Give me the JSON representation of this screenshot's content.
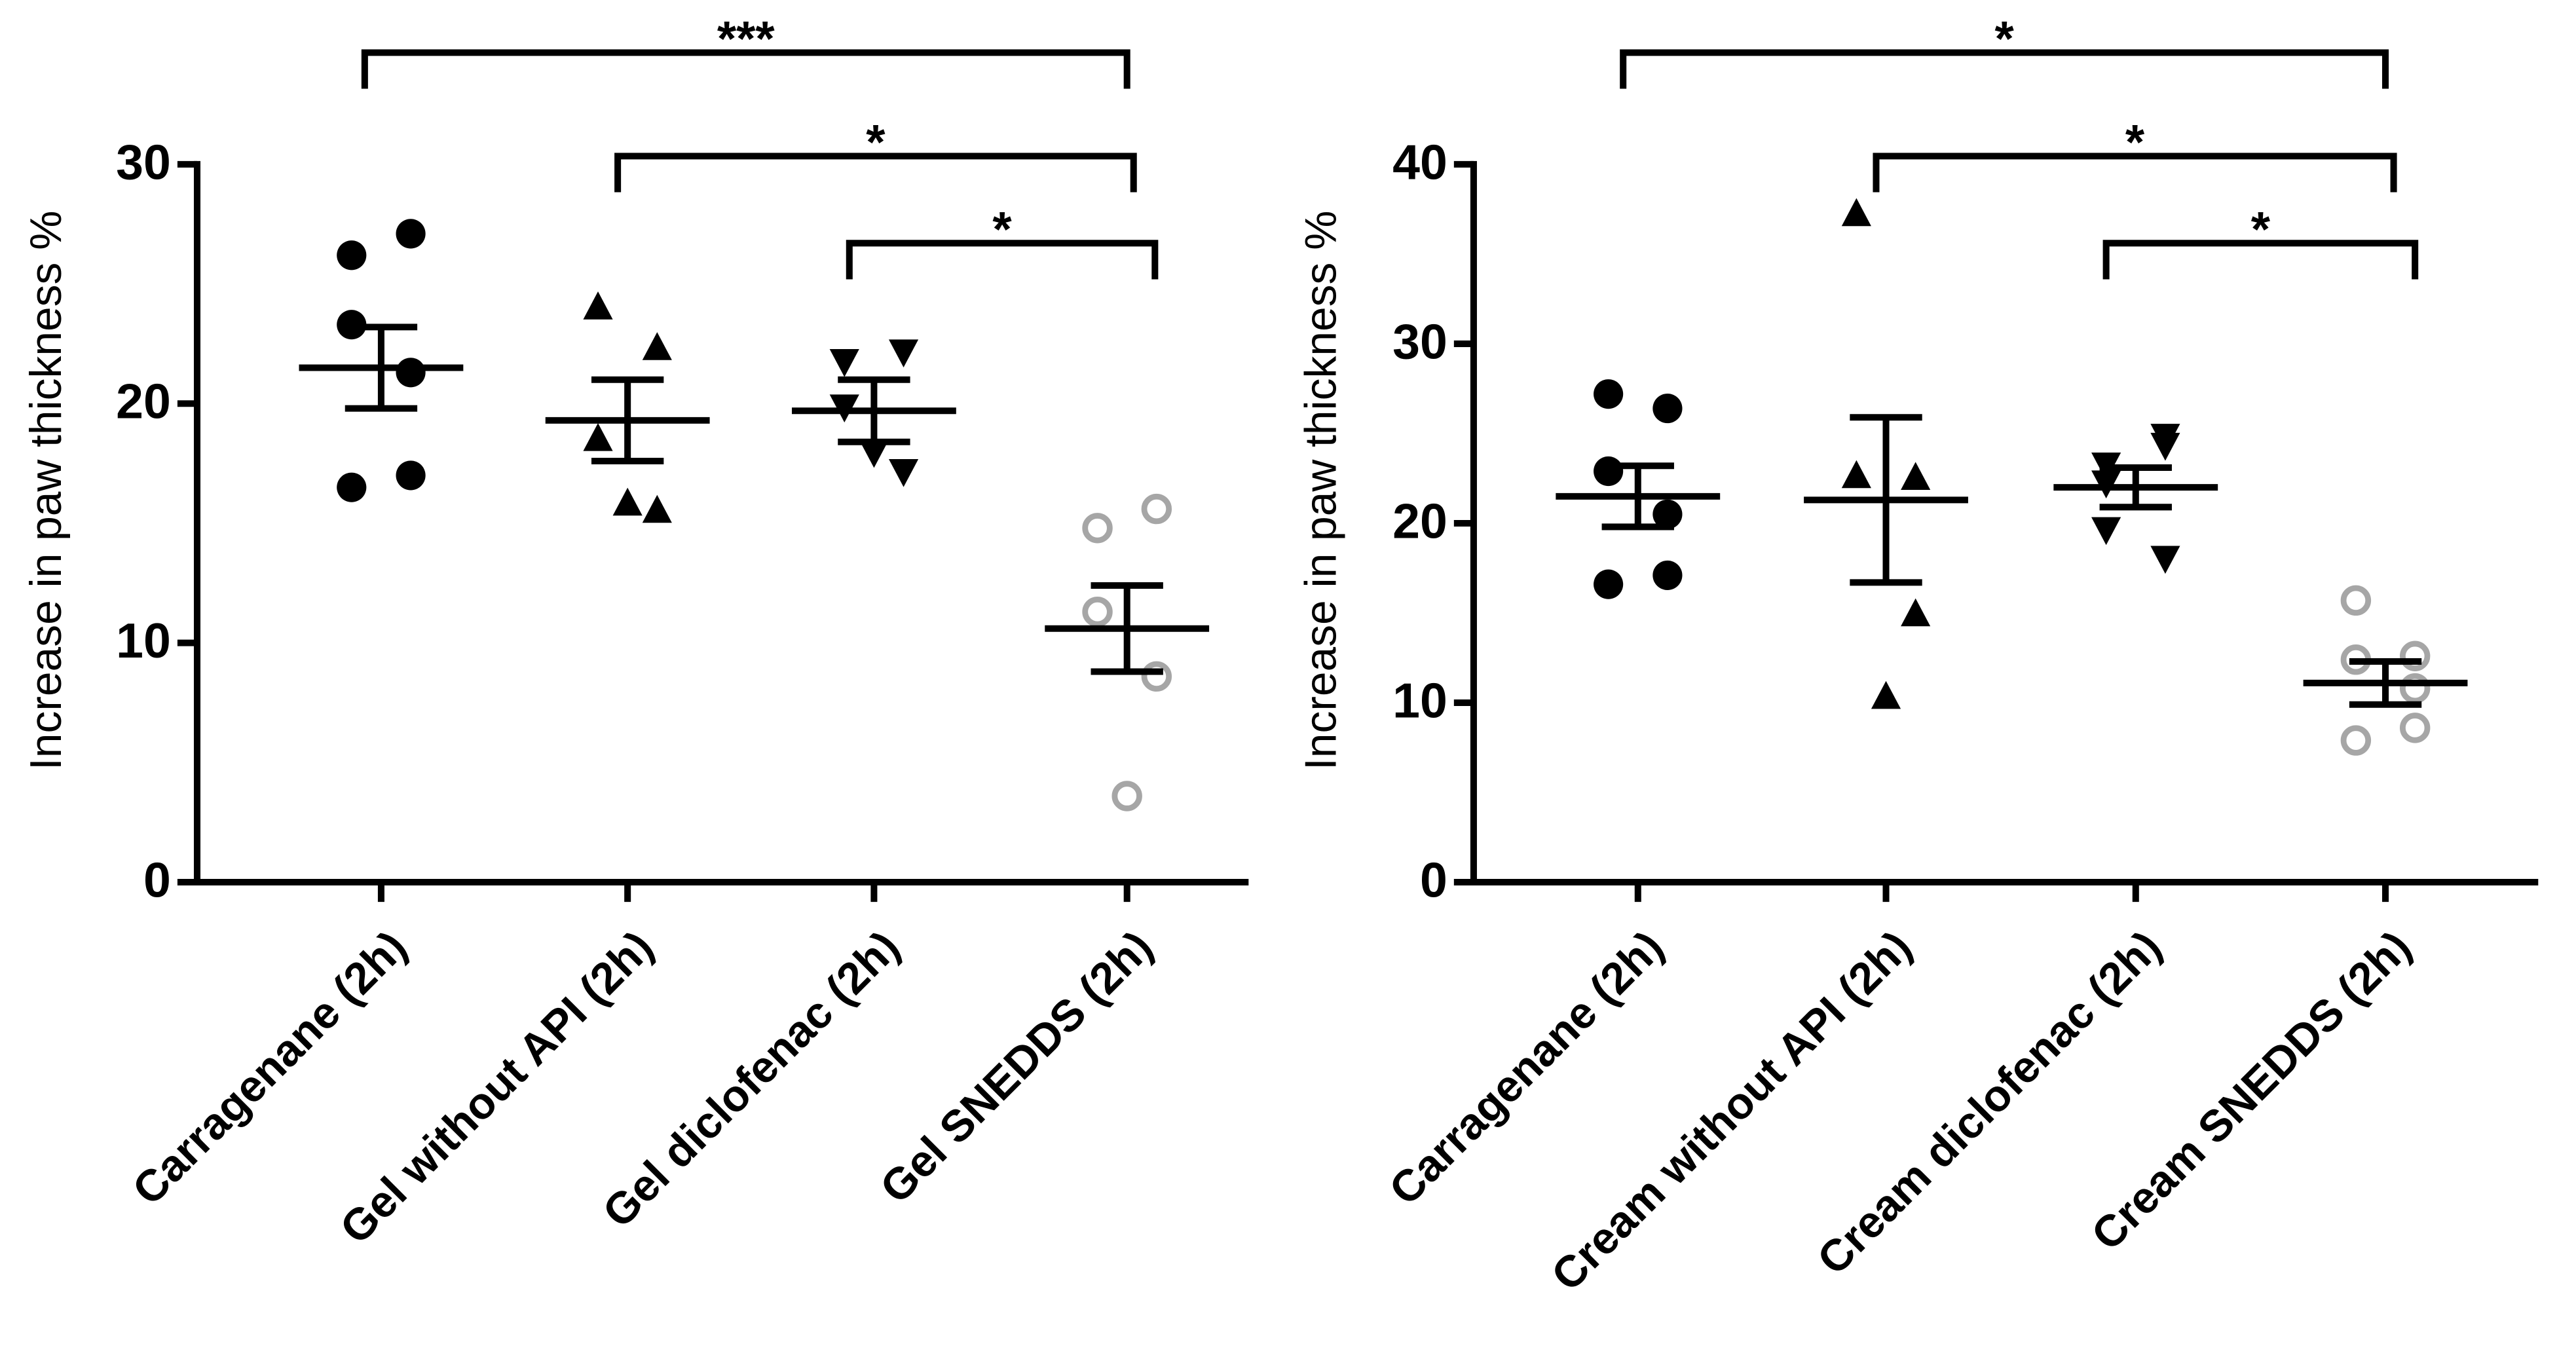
{
  "chart_data": [
    {
      "type": "scatter",
      "ylabel": "Increase in paw thickness %",
      "categories": [
        "Carragenane (2h)",
        "Gel without API (2h)",
        "Gel diclofenac (2h)",
        "Gel SNEDDS (2h)"
      ],
      "points": [
        [
          26.2,
          27.1,
          23.3,
          21.3,
          16.5,
          17.0
        ],
        [
          24.0,
          22.3,
          18.5,
          15.5,
          15.8
        ],
        [
          21.8,
          22.2,
          19.9,
          17.2,
          18.0
        ],
        [
          14.8,
          15.6,
          11.3,
          8.6,
          3.6
        ]
      ],
      "means": [
        21.5,
        19.3,
        19.7,
        10.6
      ],
      "errors": [
        1.7,
        1.7,
        1.3,
        1.8
      ],
      "markers": [
        "circle",
        "triangle",
        "triangle-down",
        "open-circle"
      ],
      "colors": [
        "#000000",
        "#000000",
        "#000000",
        "#a6a6a6"
      ],
      "ylim": [
        0,
        30
      ],
      "yticks": [
        0,
        10,
        20,
        30
      ],
      "comparisons": [
        {
          "from": 0,
          "to": 3,
          "label": "***"
        },
        {
          "from": 1,
          "to": 3,
          "label": "*"
        },
        {
          "from": 2,
          "to": 3,
          "label": "*"
        }
      ]
    },
    {
      "type": "scatter",
      "ylabel": "Increase in paw thickness %",
      "categories": [
        "Carragenane (2h)",
        "Cream without API (2h)",
        "Cream diclofenac (2h)",
        "Cream SNEDDS (2h)"
      ],
      "points": [
        [
          27.2,
          26.4,
          22.9,
          20.5,
          16.6,
          17.1
        ],
        [
          37.2,
          22.5,
          22.6,
          14.9,
          10.3
        ],
        [
          22.3,
          24.9,
          23.3,
          24.4,
          19.7,
          18.1
        ],
        [
          15.7,
          12.6,
          12.4,
          10.8,
          7.9,
          8.6
        ]
      ],
      "means": [
        21.5,
        21.3,
        22.0,
        11.1
      ],
      "errors": [
        1.7,
        4.6,
        1.1,
        1.2
      ],
      "markers": [
        "circle",
        "triangle",
        "triangle-down",
        "open-circle"
      ],
      "colors": [
        "#000000",
        "#000000",
        "#000000",
        "#a6a6a6"
      ],
      "ylim": [
        0,
        40
      ],
      "yticks": [
        0,
        10,
        20,
        30,
        40
      ],
      "comparisons": [
        {
          "from": 0,
          "to": 3,
          "label": "*"
        },
        {
          "from": 1,
          "to": 3,
          "label": "*"
        },
        {
          "from": 2,
          "to": 3,
          "label": "*"
        }
      ]
    }
  ]
}
